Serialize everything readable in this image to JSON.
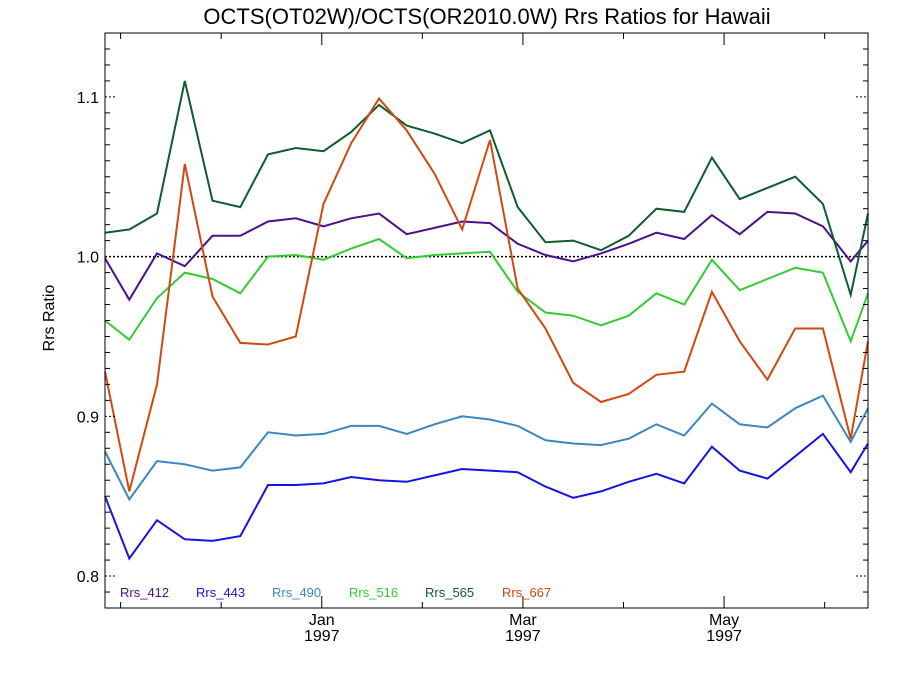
{
  "chart_data": {
    "type": "line",
    "title": "OCTS(OT02W)/OCTS(OR2010.0W)  Rrs Ratios for Hawaii",
    "ylabel": "Rrs Ratio",
    "xlabel": "",
    "ylim": [
      0.78,
      1.14
    ],
    "x_ticks": [
      {
        "month": "Jan",
        "year": "1997",
        "x": 39.5
      },
      {
        "month": "Mar",
        "year": "1997",
        "x": 97.5
      },
      {
        "month": "May",
        "year": "1997",
        "x": 155.5
      }
    ],
    "xlim": [
      -23,
      197
    ],
    "y_ticks": [
      "0.8",
      "0.9",
      "1.0",
      "1.1"
    ],
    "y_tick_values": [
      0.8,
      0.9,
      1.0,
      1.1
    ],
    "reference_line": 1.0,
    "x": [
      -23,
      -16,
      -8,
      0,
      8,
      16,
      24,
      32,
      40,
      48,
      56,
      64,
      72,
      80,
      88,
      96,
      104,
      112,
      120,
      128,
      136,
      144,
      152,
      160,
      168,
      176,
      184,
      192,
      197
    ],
    "series": [
      {
        "name": "Rrs_412",
        "color": "#4b0f8f",
        "values": [
          0.999,
          0.973,
          1.002,
          0.994,
          1.013,
          1.013,
          1.022,
          1.024,
          1.019,
          1.024,
          1.027,
          1.014,
          1.018,
          1.022,
          1.021,
          1.008,
          1.001,
          0.997,
          1.002,
          1.008,
          1.015,
          1.011,
          1.026,
          1.014,
          1.028,
          1.027,
          1.019,
          0.997,
          1.01
        ]
      },
      {
        "name": "Rrs_443",
        "color": "#1414e6",
        "values": [
          0.85,
          0.811,
          0.835,
          0.823,
          0.822,
          0.825,
          0.857,
          0.857,
          0.858,
          0.862,
          0.86,
          0.859,
          0.863,
          0.867,
          0.866,
          0.865,
          0.856,
          0.849,
          0.853,
          0.859,
          0.864,
          0.858,
          0.881,
          0.866,
          0.861,
          0.875,
          0.889,
          0.865,
          0.883
        ]
      },
      {
        "name": "Rrs_490",
        "color": "#3a88c0",
        "values": [
          0.878,
          0.848,
          0.872,
          0.87,
          0.866,
          0.868,
          0.89,
          0.888,
          0.889,
          0.894,
          0.894,
          0.889,
          0.895,
          0.9,
          0.898,
          0.894,
          0.885,
          0.883,
          0.882,
          0.886,
          0.895,
          0.888,
          0.908,
          0.895,
          0.893,
          0.905,
          0.913,
          0.884,
          0.905
        ]
      },
      {
        "name": "Rrs_516",
        "color": "#33cc33",
        "values": [
          0.96,
          0.948,
          0.974,
          0.99,
          0.986,
          0.977,
          1.0,
          1.001,
          0.998,
          1.005,
          1.011,
          0.999,
          1.001,
          1.002,
          1.003,
          0.978,
          0.965,
          0.963,
          0.957,
          0.963,
          0.977,
          0.97,
          0.998,
          0.979,
          0.986,
          0.993,
          0.99,
          0.947,
          0.977
        ]
      },
      {
        "name": "Rrs_565",
        "color": "#0f5c2e",
        "values": [
          1.015,
          1.017,
          1.027,
          1.11,
          1.035,
          1.031,
          1.064,
          1.068,
          1.066,
          1.078,
          1.095,
          1.082,
          1.077,
          1.071,
          1.079,
          1.031,
          1.009,
          1.01,
          1.004,
          1.013,
          1.03,
          1.028,
          1.062,
          1.036,
          1.043,
          1.05,
          1.033,
          0.976,
          1.027
        ]
      },
      {
        "name": "Rrs_667",
        "color": "#d2480f",
        "values": [
          0.928,
          0.853,
          0.92,
          1.058,
          0.975,
          0.946,
          0.945,
          0.95,
          1.033,
          1.071,
          1.099,
          1.079,
          1.052,
          1.017,
          1.073,
          0.98,
          0.955,
          0.921,
          0.909,
          0.914,
          0.926,
          0.928,
          0.978,
          0.947,
          0.923,
          0.955,
          0.955,
          0.886,
          0.947
        ]
      }
    ]
  }
}
